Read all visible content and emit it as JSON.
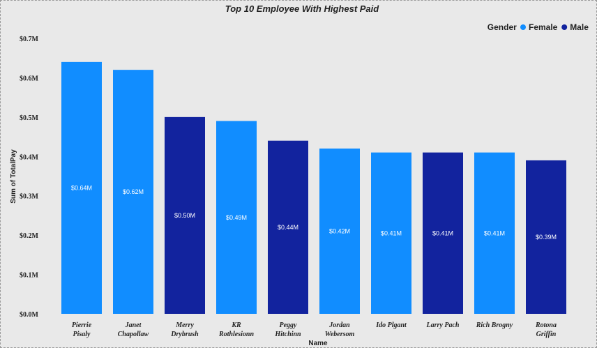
{
  "chart_data": {
    "type": "bar",
    "title": "Top 10 Employee With Highest Paid",
    "xlabel": "Name",
    "ylabel": "Sum of TotalPay",
    "ylim": [
      0,
      0.7
    ],
    "y_ticks": [
      "$0.0M",
      "$0.1M",
      "$0.2M",
      "$0.3M",
      "$0.4M",
      "$0.5M",
      "$0.6M",
      "$0.7M"
    ],
    "legend": {
      "title": "Gender",
      "position": "top-right",
      "entries": [
        {
          "name": "Female",
          "color": "#118dff"
        },
        {
          "name": "Male",
          "color": "#12239e"
        }
      ]
    },
    "categories": [
      [
        "Pierrie",
        "Pisaly"
      ],
      [
        "Janet",
        "Chapollaw"
      ],
      [
        "Merry",
        "Drybrush"
      ],
      [
        "KR",
        "Rothlesionn"
      ],
      [
        "Peggy",
        "Hitchinn"
      ],
      [
        "Jordan",
        "Webersom"
      ],
      [
        "Ido Plgant"
      ],
      [
        "Larry Pach"
      ],
      [
        "Rich Brogny"
      ],
      [
        "Rotona",
        "Griffin"
      ]
    ],
    "values": [
      0.64,
      0.62,
      0.5,
      0.49,
      0.44,
      0.42,
      0.41,
      0.41,
      0.41,
      0.39
    ],
    "value_labels": [
      "$0.64M",
      "$0.62M",
      "$0.50M",
      "$0.49M",
      "$0.44M",
      "$0.42M",
      "$0.41M",
      "$0.41M",
      "$0.41M",
      "$0.39M"
    ],
    "genders": [
      "Female",
      "Female",
      "Male",
      "Female",
      "Male",
      "Female",
      "Female",
      "Male",
      "Female",
      "Male"
    ]
  }
}
